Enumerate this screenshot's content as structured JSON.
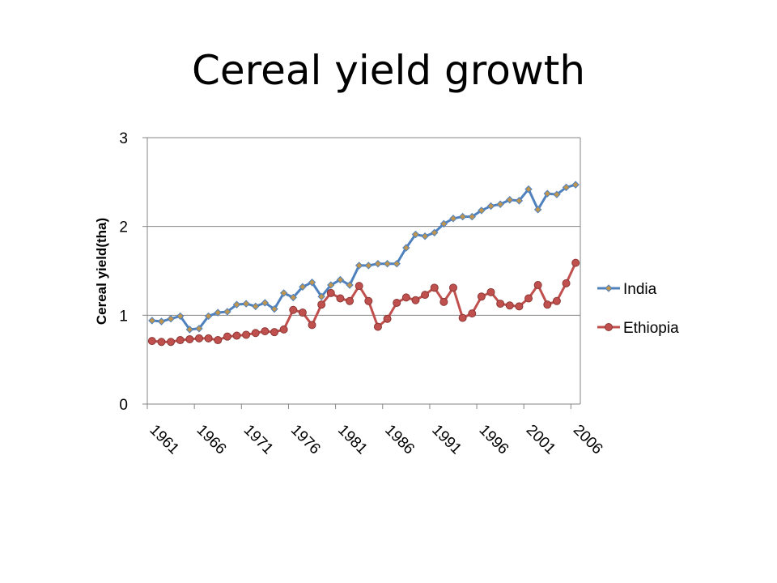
{
  "page": {
    "title": "Cereal yield growth"
  },
  "chart_data": {
    "type": "line",
    "title": "",
    "xlabel": "",
    "ylabel": "Cereal yield(tha)",
    "ylim": [
      0,
      3
    ],
    "yticks": [
      "0",
      "1",
      "2",
      "3"
    ],
    "xtick_labels": [
      "1961",
      "1966",
      "1971",
      "1976",
      "1981",
      "1986",
      "1991",
      "1996",
      "2001",
      "2006"
    ],
    "xlim": [
      1961,
      2006
    ],
    "grid": "horizontal major gridlines",
    "legend": "right",
    "x": [
      1961,
      1962,
      1963,
      1964,
      1965,
      1966,
      1967,
      1968,
      1969,
      1970,
      1971,
      1972,
      1973,
      1974,
      1975,
      1976,
      1977,
      1978,
      1979,
      1980,
      1981,
      1982,
      1983,
      1984,
      1985,
      1986,
      1987,
      1988,
      1989,
      1990,
      1991,
      1992,
      1993,
      1994,
      1995,
      1996,
      1997,
      1998,
      1999,
      2000,
      2001,
      2002,
      2003,
      2004,
      2005,
      2006
    ],
    "series": [
      {
        "name": "India",
        "color": "#4f81bd",
        "marker": "diamond",
        "marker_color": "#c0964e",
        "values": [
          0.94,
          0.93,
          0.96,
          0.99,
          0.84,
          0.85,
          0.99,
          1.03,
          1.04,
          1.12,
          1.13,
          1.1,
          1.14,
          1.07,
          1.25,
          1.2,
          1.32,
          1.37,
          1.21,
          1.34,
          1.4,
          1.34,
          1.56,
          1.56,
          1.58,
          1.58,
          1.58,
          1.76,
          1.91,
          1.89,
          1.93,
          2.03,
          2.09,
          2.11,
          2.11,
          2.18,
          2.23,
          2.25,
          2.3,
          2.29,
          2.42,
          2.19,
          2.37,
          2.36,
          2.44,
          2.47
        ]
      },
      {
        "name": "Ethiopia",
        "color": "#c0504d",
        "marker": "circle",
        "marker_color": "#c0504d",
        "values": [
          0.71,
          0.7,
          0.7,
          0.72,
          0.73,
          0.74,
          0.74,
          0.72,
          0.76,
          0.77,
          0.78,
          0.8,
          0.82,
          0.81,
          0.84,
          1.06,
          1.03,
          0.89,
          1.12,
          1.25,
          1.19,
          1.16,
          1.33,
          1.16,
          0.87,
          0.96,
          1.14,
          1.2,
          1.17,
          1.23,
          1.31,
          1.15,
          1.31,
          0.97,
          1.02,
          1.21,
          1.26,
          1.13,
          1.11,
          1.1,
          1.19,
          1.34,
          1.12,
          1.16,
          1.36,
          1.59
        ]
      }
    ]
  }
}
